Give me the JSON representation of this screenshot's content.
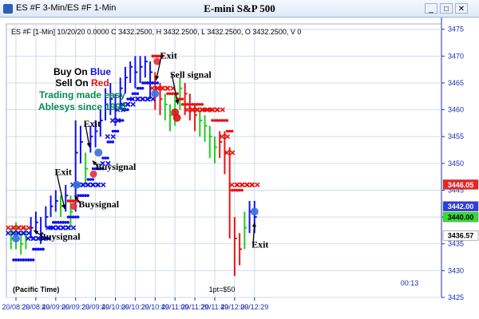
{
  "window": {
    "title": "ES #F 3-Min/ES #F 1-Min",
    "center_title": "E-mini S&P 500",
    "buttons": {
      "minimize": "_",
      "restore": "□",
      "close": "✕"
    }
  },
  "header": {
    "info_line": "ES #F [1-Min] 10/20/20  0.0000 C 3432.2500, H 3432.2500, L 3432.2500, O 3432.2500, V 0"
  },
  "legend_text": {
    "buy_on": "Buy On ",
    "blue_word": "Blue",
    "sell_on": "Sell On ",
    "red_word": "Red",
    "tagline1": "Trading made easy",
    "tagline2": "Ablesys since 1994"
  },
  "footer": {
    "timezone": "(Pacific Time)",
    "point_value": "1pt=$50",
    "countdown": "00:13"
  },
  "annotations": [
    {
      "text": "Buysignal",
      "x": "20/08:53",
      "y": 3435.8
    },
    {
      "text": "Exit",
      "x": "20/09:08",
      "y": 3447.8
    },
    {
      "text": "Buysignal",
      "x": "20/09:32",
      "y": 3441.8
    },
    {
      "text": "Exit",
      "x": "20/09:37",
      "y": 3456.8
    },
    {
      "text": "Buysignal",
      "x": "20/09:49",
      "y": 3448.8
    },
    {
      "text": "Exit",
      "x": "20/10:54",
      "y": 3469.5
    },
    {
      "text": "Sell signal",
      "x": "20/11:04",
      "y": 3466
    },
    {
      "text": "Exit",
      "x": "20/12:26",
      "y": 3434.3
    }
  ],
  "colors": {
    "buy_blue": "#1010ee",
    "sell_red": "#ee1111",
    "neutral_green": "#22cc22",
    "axis_text": "#1a2fb0",
    "grid": "#cfdbea",
    "tagline_green": "#0a8a52"
  },
  "chart_data": {
    "type": "line",
    "title": "E-mini S&P 500",
    "x_tick_labels": [
      "20/08:29",
      "20/08:49",
      "20/09:09",
      "20/09:29",
      "20/09:49",
      "20/10:09",
      "20/10:29",
      "20/10:49",
      "20/11:09",
      "20/11:29",
      "20/11:49",
      "20/12:09",
      "20/12:29"
    ],
    "ylim": [
      3425,
      3476
    ],
    "y_ticks": [
      3425,
      3430,
      3435,
      3440,
      3445,
      3450,
      3455,
      3460,
      3465,
      3470,
      3475
    ],
    "grid": true,
    "price_tags": [
      {
        "value": 3446.05,
        "label": "3446.05",
        "color": "#ee2222",
        "text_color": "#ffffff"
      },
      {
        "value": 3442.0,
        "label": "3442.00",
        "color": "#2c3ee0",
        "text_color": "#ffffff"
      },
      {
        "value": 3440.0,
        "label": "3440.00",
        "color": "#33dd33",
        "text_color": "#000000"
      },
      {
        "value": 3436.57,
        "label": "3436.57",
        "color": "#ffffff",
        "text_color": "#000000"
      }
    ],
    "series": [
      {
        "style": "price_bars",
        "x": [
          "20/08:24",
          "20/08:29",
          "20/08:34",
          "20/08:39",
          "20/08:44",
          "20/08:49",
          "20/08:54",
          "20/08:59",
          "20/09:04",
          "20/09:09",
          "20/09:14",
          "20/09:19",
          "20/09:24",
          "20/09:29",
          "20/09:34",
          "20/09:39",
          "20/09:44",
          "20/09:49",
          "20/09:54",
          "20/09:59",
          "20/10:04",
          "20/10:09",
          "20/10:14",
          "20/10:19",
          "20/10:24",
          "20/10:29",
          "20/10:34",
          "20/10:39",
          "20/10:44",
          "20/10:49",
          "20/10:54",
          "20/10:59",
          "20/11:04",
          "20/11:09",
          "20/11:14",
          "20/11:19",
          "20/11:24",
          "20/11:29",
          "20/11:34",
          "20/11:39",
          "20/11:44",
          "20/11:49",
          "20/11:54",
          "20/11:59",
          "20/12:04",
          "20/12:09",
          "20/12:14",
          "20/12:19",
          "20/12:24",
          "20/12:29"
        ],
        "close": [
          3436,
          3437,
          3435,
          3436,
          3438,
          3439,
          3437,
          3440,
          3442,
          3443,
          3442,
          3444,
          3441,
          3452,
          3454,
          3449,
          3455,
          3456,
          3458,
          3461,
          3462,
          3460,
          3464,
          3466,
          3468,
          3467,
          3468,
          3469,
          3467,
          3464,
          3462,
          3461,
          3459,
          3460,
          3464,
          3463,
          3461,
          3459,
          3458,
          3457,
          3455,
          3453,
          3454,
          3452,
          3445,
          3436,
          3434,
          3438,
          3441,
          3440
        ],
        "high": [
          3438,
          3439,
          3437,
          3438,
          3440,
          3441,
          3440,
          3442,
          3444,
          3445,
          3444,
          3446,
          3444,
          3458,
          3457,
          3452,
          3457,
          3458,
          3460,
          3464,
          3465,
          3463,
          3466,
          3468,
          3469,
          3470,
          3470,
          3470,
          3469,
          3467,
          3465,
          3463,
          3461,
          3463,
          3466,
          3465,
          3463,
          3461,
          3460,
          3459,
          3457,
          3455,
          3456,
          3456,
          3453,
          3440,
          3437,
          3441,
          3443,
          3443
        ],
        "low": [
          3434,
          3434,
          3433,
          3434,
          3436,
          3437,
          3435,
          3438,
          3440,
          3441,
          3440,
          3441,
          3438,
          3441,
          3450,
          3446,
          3452,
          3453,
          3455,
          3458,
          3459,
          3457,
          3460,
          3463,
          3465,
          3464,
          3465,
          3466,
          3462,
          3460,
          3459,
          3458,
          3456,
          3457,
          3460,
          3459,
          3458,
          3456,
          3455,
          3454,
          3451,
          3450,
          3451,
          3448,
          3436,
          3429,
          3431,
          3434,
          3437,
          3437
        ],
        "state": [
          "g",
          "g",
          "g",
          "g",
          "b",
          "b",
          "b",
          "b",
          "b",
          "b",
          "g",
          "b",
          "g",
          "b",
          "b",
          "g",
          "b",
          "b",
          "b",
          "b",
          "b",
          "b",
          "b",
          "b",
          "b",
          "b",
          "b",
          "b",
          "b",
          "r",
          "r",
          "g",
          "g",
          "g",
          "g",
          "r",
          "r",
          "r",
          "g",
          "g",
          "g",
          "g",
          "r",
          "r",
          "r",
          "r",
          "r",
          "g",
          "b",
          "b"
        ]
      },
      {
        "style": "blue_x_stops",
        "x": [
          "20/08:24",
          "20/08:29",
          "20/08:34",
          "20/08:39",
          "20/08:44",
          "20/08:49",
          "20/08:54",
          "20/08:59",
          "20/09:04",
          "20/09:09",
          "20/09:14",
          "20/09:19",
          "20/09:24",
          "20/09:29",
          "20/09:34",
          "20/09:39",
          "20/09:44",
          "20/09:49",
          "20/09:54",
          "20/09:59",
          "20/10:04",
          "20/10:09",
          "20/10:14",
          "20/10:19",
          "20/10:24",
          "20/10:29",
          "20/10:34",
          "20/10:39",
          "20/10:44"
        ],
        "values": [
          3437,
          3437,
          3437,
          3437,
          3436,
          3436,
          3436,
          3436,
          3438,
          3438,
          3438,
          3438,
          3438,
          3446,
          3446,
          3446,
          3446,
          3446,
          3446,
          3450,
          3455,
          3458,
          3460,
          3461,
          3461,
          3462,
          3462,
          3462,
          3462
        ]
      },
      {
        "style": "blue_dots",
        "x": [
          "20/08:29",
          "20/08:34",
          "20/08:39",
          "20/08:44",
          "20/08:49",
          "20/08:54",
          "20/08:59",
          "20/09:04",
          "20/09:09",
          "20/09:14",
          "20/09:19",
          "20/09:24",
          "20/09:29",
          "20/09:34",
          "20/09:39",
          "20/09:44",
          "20/09:49",
          "20/09:54",
          "20/09:59",
          "20/10:04",
          "20/10:09",
          "20/10:14",
          "20/10:19",
          "20/10:24",
          "20/10:29",
          "20/10:34",
          "20/10:39",
          "20/10:44",
          "20/10:49"
        ],
        "values": [
          3432,
          3432,
          3432,
          3432,
          3434,
          3434,
          3436,
          3438,
          3439,
          3439,
          3439,
          3440,
          3440,
          3444,
          3444,
          3447,
          3449,
          3449,
          3451,
          3454,
          3456,
          3458,
          3460,
          3462,
          3463,
          3464,
          3465,
          3465,
          3465
        ]
      },
      {
        "style": "red_dots",
        "x": [
          "20/09:24",
          "20/09:29",
          "20/10:49",
          "20/10:54",
          "20/11:04",
          "20/11:09",
          "20/11:14",
          "20/11:19",
          "20/11:24",
          "20/11:29",
          "20/11:34",
          "20/11:39",
          "20/11:44",
          "20/11:49",
          "20/11:54",
          "20/11:59",
          "20/12:04",
          "20/12:09",
          "20/12:14"
        ],
        "values": [
          3443,
          3443,
          3470,
          3470,
          3463,
          3463,
          3462,
          3461,
          3461,
          3461,
          3461,
          3460,
          3460,
          3458,
          3458,
          3458,
          3456,
          3445,
          3445
        ]
      },
      {
        "style": "red_x_stops",
        "x": [
          "20/08:24",
          "20/08:29",
          "20/08:34",
          "20/08:39",
          "20/10:49",
          "20/10:54",
          "20/10:59",
          "20/11:04",
          "20/11:24",
          "20/11:29",
          "20/11:34",
          "20/11:39",
          "20/11:44",
          "20/11:49",
          "20/11:54",
          "20/11:59",
          "20/12:04",
          "20/12:09",
          "20/12:14",
          "20/12:19",
          "20/12:24",
          "20/12:29"
        ],
        "values": [
          3438,
          3438,
          3438,
          3438,
          3464,
          3464,
          3464,
          3464,
          3460,
          3460,
          3460,
          3460,
          3460,
          3460,
          3460,
          3455,
          3452,
          3446,
          3446,
          3446,
          3446,
          3446
        ]
      }
    ],
    "signals": [
      {
        "type": "buy",
        "x": "20/08:29",
        "y": 3436
      },
      {
        "type": "exit",
        "x": "20/09:27",
        "y": 3442
      },
      {
        "type": "buy",
        "x": "20/09:30",
        "y": 3446
      },
      {
        "type": "exit",
        "x": "20/09:47",
        "y": 3448
      },
      {
        "type": "buy",
        "x": "20/09:52",
        "y": 3452
      },
      {
        "type": "buy",
        "x": "20/10:49",
        "y": 3463
      },
      {
        "type": "exit",
        "x": "20/10:51",
        "y": 3469
      },
      {
        "type": "sell",
        "x": "20/11:09",
        "y": 3459.5
      },
      {
        "type": "sell",
        "x": "20/11:11",
        "y": 3458.5
      },
      {
        "type": "buy",
        "x": "20/12:29",
        "y": 3441
      }
    ]
  }
}
